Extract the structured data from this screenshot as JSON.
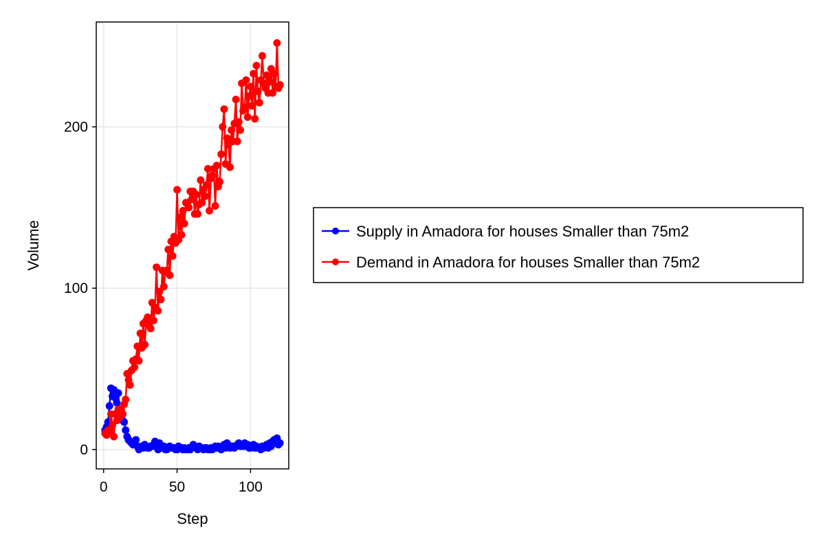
{
  "chart_data": {
    "type": "line",
    "xlabel": "Step",
    "ylabel": "Volume",
    "xlim": [
      -5,
      126
    ],
    "ylim": [
      -12,
      265
    ],
    "xticks": [
      0,
      50,
      100
    ],
    "yticks": [
      0,
      100,
      200
    ],
    "grid": true,
    "legend_position": "right",
    "series": [
      {
        "name": "Supply in Amadora for houses Smaller than 75m2",
        "color": "#0000ff",
        "x": [
          1,
          2,
          3,
          4,
          5,
          6,
          7,
          8,
          9,
          10,
          11,
          12,
          13,
          14,
          15,
          16,
          17,
          18,
          19,
          20,
          21,
          22,
          23,
          24,
          25,
          26,
          27,
          28,
          29,
          30,
          31,
          32,
          33,
          34,
          35,
          36,
          37,
          38,
          39,
          40,
          41,
          42,
          43,
          44,
          45,
          46,
          47,
          48,
          49,
          50,
          51,
          52,
          53,
          54,
          55,
          56,
          57,
          58,
          59,
          60,
          61,
          62,
          63,
          64,
          65,
          66,
          67,
          68,
          69,
          70,
          71,
          72,
          73,
          74,
          75,
          76,
          77,
          78,
          79,
          80,
          81,
          82,
          83,
          84,
          85,
          86,
          87,
          88,
          89,
          90,
          91,
          92,
          93,
          94,
          95,
          96,
          97,
          98,
          99,
          100,
          101,
          102,
          103,
          104,
          105,
          106,
          107,
          108,
          109,
          110,
          111,
          112,
          113,
          114,
          115,
          116,
          117,
          118,
          119,
          120
        ],
        "y": [
          12,
          14,
          17,
          27,
          38,
          33,
          37,
          32,
          29,
          35,
          21,
          20,
          18,
          17,
          12,
          8,
          6,
          5,
          4,
          3,
          5,
          6,
          2,
          0,
          1,
          2,
          1,
          3,
          2,
          1,
          1,
          2,
          2,
          3,
          5,
          4,
          0,
          4,
          1,
          1,
          2,
          0,
          0,
          1,
          2,
          1,
          1,
          1,
          0,
          0,
          2,
          1,
          1,
          0,
          1,
          0,
          0,
          1,
          0,
          1,
          3,
          2,
          1,
          0,
          2,
          1,
          1,
          0,
          1,
          1,
          0,
          0,
          1,
          0,
          1,
          2,
          1,
          2,
          1,
          0,
          2,
          3,
          1,
          4,
          2,
          1,
          2,
          2,
          1,
          2,
          3,
          4,
          2,
          3,
          2,
          4,
          2,
          3,
          1,
          1,
          2,
          3,
          1,
          2,
          1,
          1,
          0,
          2,
          1,
          2,
          3,
          1,
          4,
          2,
          5,
          6,
          4,
          7,
          3,
          4
        ]
      },
      {
        "name": "Demand in Amadora for houses Smaller than 75m2",
        "color": "#ff0000",
        "x": [
          1,
          2,
          3,
          4,
          5,
          6,
          7,
          8,
          9,
          10,
          11,
          12,
          13,
          14,
          15,
          16,
          17,
          18,
          19,
          20,
          21,
          22,
          23,
          24,
          25,
          26,
          27,
          28,
          29,
          30,
          31,
          32,
          33,
          34,
          35,
          36,
          37,
          38,
          39,
          40,
          41,
          42,
          43,
          44,
          45,
          46,
          47,
          48,
          49,
          50,
          51,
          52,
          53,
          54,
          55,
          56,
          57,
          58,
          59,
          60,
          61,
          62,
          63,
          64,
          65,
          66,
          67,
          68,
          69,
          70,
          71,
          72,
          73,
          74,
          75,
          76,
          77,
          78,
          79,
          80,
          81,
          82,
          83,
          84,
          85,
          86,
          87,
          88,
          89,
          90,
          91,
          92,
          93,
          94,
          95,
          96,
          97,
          98,
          99,
          100,
          101,
          102,
          103,
          104,
          105,
          106,
          107,
          108,
          109,
          110,
          111,
          112,
          113,
          114,
          115,
          116,
          117,
          118,
          119,
          120
        ],
        "y": [
          10,
          9,
          12,
          11,
          22,
          15,
          8,
          22,
          18,
          25,
          20,
          25,
          22,
          28,
          31,
          47,
          43,
          40,
          49,
          55,
          51,
          56,
          64,
          55,
          72,
          63,
          78,
          65,
          80,
          82,
          77,
          75,
          91,
          80,
          88,
          113,
          86,
          98,
          93,
          111,
          101,
          110,
          111,
          124,
          108,
          129,
          120,
          132,
          128,
          161,
          130,
          144,
          133,
          148,
          140,
          153,
          153,
          150,
          160,
          155,
          160,
          146,
          158,
          146,
          152,
          167,
          153,
          161,
          157,
          164,
          174,
          148,
          168,
          170,
          174,
          151,
          176,
          163,
          166,
          183,
          200,
          211,
          177,
          193,
          189,
          175,
          198,
          191,
          202,
          217,
          191,
          203,
          198,
          227,
          210,
          212,
          229,
          206,
          219,
          225,
          213,
          233,
          205,
          238,
          222,
          215,
          229,
          244,
          227,
          224,
          232,
          221,
          228,
          236,
          221,
          233,
          225,
          252,
          224,
          226
        ]
      }
    ]
  }
}
